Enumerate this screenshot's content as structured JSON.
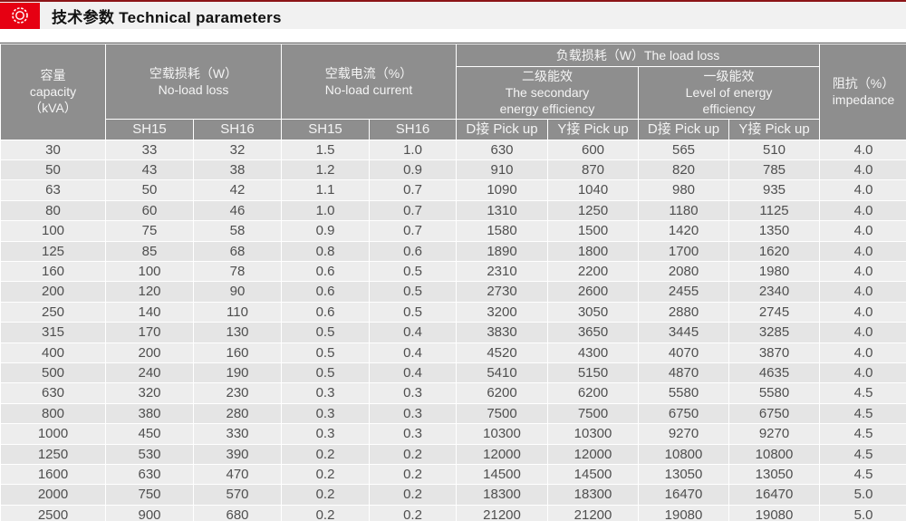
{
  "page": {
    "title": "技术参数 Technical parameters"
  },
  "icons": {
    "title_bullet": "concentric-circles-icon"
  },
  "colors": {
    "accent_red": "#e60012",
    "top_line_red": "#8c1417",
    "header_gray": "#8e8e8e",
    "row_light": "#ededed",
    "row_dark": "#e5e5e5",
    "cell_text": "#4f4f4f"
  },
  "table": {
    "header": {
      "capacity": {
        "zh": "容量",
        "en": "capacity",
        "unit": "（kVA）"
      },
      "no_load_loss": {
        "zh": "空载损耗（W）",
        "en": "No-load loss"
      },
      "no_load_current": {
        "zh": "空载电流（%）",
        "en": "No-load current"
      },
      "load_loss": {
        "combined": "负载损耗（W）The load loss"
      },
      "secondary": {
        "zh": "二级能效",
        "en1": "The secondary",
        "en2": "energy efficiency"
      },
      "level1": {
        "zh": "一级能效",
        "en1": "Level of energy",
        "en2": "efficiency"
      },
      "impedance": {
        "zh": "阻抗（%）",
        "en": "impedance"
      },
      "sub": [
        "SH15",
        "SH16",
        "SH15",
        "SH16",
        "D接 Pick up",
        "Y接 Pick up",
        "D接 Pick up",
        "Y接 Pick up"
      ]
    },
    "rows": [
      [
        "30",
        "33",
        "32",
        "1.5",
        "1.0",
        "630",
        "600",
        "565",
        "510",
        "4.0"
      ],
      [
        "50",
        "43",
        "38",
        "1.2",
        "0.9",
        "910",
        "870",
        "820",
        "785",
        "4.0"
      ],
      [
        "63",
        "50",
        "42",
        "1.1",
        "0.7",
        "1090",
        "1040",
        "980",
        "935",
        "4.0"
      ],
      [
        "80",
        "60",
        "46",
        "1.0",
        "0.7",
        "1310",
        "1250",
        "1180",
        "1125",
        "4.0"
      ],
      [
        "100",
        "75",
        "58",
        "0.9",
        "0.7",
        "1580",
        "1500",
        "1420",
        "1350",
        "4.0"
      ],
      [
        "125",
        "85",
        "68",
        "0.8",
        "0.6",
        "1890",
        "1800",
        "1700",
        "1620",
        "4.0"
      ],
      [
        "160",
        "100",
        "78",
        "0.6",
        "0.5",
        "2310",
        "2200",
        "2080",
        "1980",
        "4.0"
      ],
      [
        "200",
        "120",
        "90",
        "0.6",
        "0.5",
        "2730",
        "2600",
        "2455",
        "2340",
        "4.0"
      ],
      [
        "250",
        "140",
        "110",
        "0.6",
        "0.5",
        "3200",
        "3050",
        "2880",
        "2745",
        "4.0"
      ],
      [
        "315",
        "170",
        "130",
        "0.5",
        "0.4",
        "3830",
        "3650",
        "3445",
        "3285",
        "4.0"
      ],
      [
        "400",
        "200",
        "160",
        "0.5",
        "0.4",
        "4520",
        "4300",
        "4070",
        "3870",
        "4.0"
      ],
      [
        "500",
        "240",
        "190",
        "0.5",
        "0.4",
        "5410",
        "5150",
        "4870",
        "4635",
        "4.0"
      ],
      [
        "630",
        "320",
        "230",
        "0.3",
        "0.3",
        "6200",
        "6200",
        "5580",
        "5580",
        "4.5"
      ],
      [
        "800",
        "380",
        "280",
        "0.3",
        "0.3",
        "7500",
        "7500",
        "6750",
        "6750",
        "4.5"
      ],
      [
        "1000",
        "450",
        "330",
        "0.3",
        "0.3",
        "10300",
        "10300",
        "9270",
        "9270",
        "4.5"
      ],
      [
        "1250",
        "530",
        "390",
        "0.2",
        "0.2",
        "12000",
        "12000",
        "10800",
        "10800",
        "4.5"
      ],
      [
        "1600",
        "630",
        "470",
        "0.2",
        "0.2",
        "14500",
        "14500",
        "13050",
        "13050",
        "4.5"
      ],
      [
        "2000",
        "750",
        "570",
        "0.2",
        "0.2",
        "18300",
        "18300",
        "16470",
        "16470",
        "5.0"
      ],
      [
        "2500",
        "900",
        "680",
        "0.2",
        "0.2",
        "21200",
        "21200",
        "19080",
        "19080",
        "5.0"
      ]
    ]
  }
}
